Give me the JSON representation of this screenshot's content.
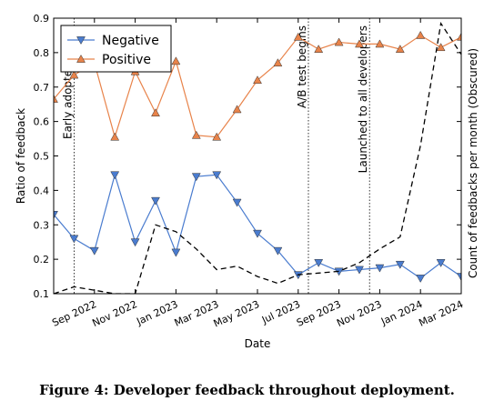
{
  "caption": "Figure 4: Developer feedback throughout deployment.",
  "chart_data": {
    "type": "line",
    "xlabel": "Date",
    "ylabel": "Ratio of feedback",
    "y2label": "Count of feedbacks per month (Obscured)",
    "ylim": [
      0.1,
      0.9
    ],
    "xlim": [
      "2022-07",
      "2024-03"
    ],
    "yticks": [
      0.1,
      0.2,
      0.3,
      0.4,
      0.5,
      0.6,
      0.7,
      0.8,
      0.9
    ],
    "ytick_labels": [
      "0.1",
      "0.2",
      "0.3",
      "0.4",
      "0.5",
      "0.6",
      "0.7",
      "0.8",
      "0.9"
    ],
    "xticks": [
      "2022-09",
      "2022-11",
      "2023-01",
      "2023-03",
      "2023-05",
      "2023-07",
      "2023-09",
      "2023-11",
      "2024-01",
      "2024-03"
    ],
    "xtick_labels": [
      "Sep 2022",
      "Nov 2022",
      "Jan 2023",
      "Mar 2023",
      "May 2023",
      "Jul 2023",
      "Sep 2023",
      "Nov 2023",
      "Jan 2024",
      "Mar 2024"
    ],
    "legend": {
      "position": "top-left"
    },
    "x": [
      "2022-07",
      "2022-08",
      "2022-09",
      "2022-10",
      "2022-11",
      "2022-12",
      "2023-01",
      "2023-02",
      "2023-03",
      "2023-04",
      "2023-05",
      "2023-06",
      "2023-07",
      "2023-08",
      "2023-09",
      "2023-10",
      "2023-11",
      "2023-12",
      "2024-01",
      "2024-02",
      "2024-03"
    ],
    "series": [
      {
        "name": "Negative",
        "color": "#4a7ccf",
        "marker": "triangle-down",
        "values": [
          0.33,
          0.26,
          0.225,
          0.445,
          0.25,
          0.37,
          0.22,
          0.44,
          0.445,
          0.365,
          0.275,
          0.225,
          0.155,
          0.19,
          0.165,
          0.17,
          0.175,
          0.185,
          0.145,
          0.19,
          0.15
        ]
      },
      {
        "name": "Positive",
        "color": "#e8834a",
        "marker": "triangle-up",
        "values": [
          0.665,
          0.735,
          0.77,
          0.555,
          0.745,
          0.625,
          0.775,
          0.56,
          0.555,
          0.635,
          0.72,
          0.77,
          0.845,
          0.81,
          0.83,
          0.825,
          0.825,
          0.81,
          0.85,
          0.815,
          0.845
        ]
      },
      {
        "name": "",
        "color": "#000000",
        "style": "dashed",
        "axis": "secondary",
        "values": [
          0.1,
          0.12,
          0.11,
          0.1,
          0.1,
          0.3,
          0.28,
          0.23,
          0.17,
          0.18,
          0.15,
          0.13,
          0.155,
          0.16,
          0.165,
          0.19,
          0.23,
          0.265,
          0.53,
          0.885,
          0.795
        ]
      }
    ],
    "events": [
      {
        "date": "2022-08",
        "label": "Early adopter launch"
      },
      {
        "date": "2023-07.5",
        "label": "A/B test begins"
      },
      {
        "date": "2023-10.5",
        "label": "Launched to all developers"
      }
    ]
  }
}
